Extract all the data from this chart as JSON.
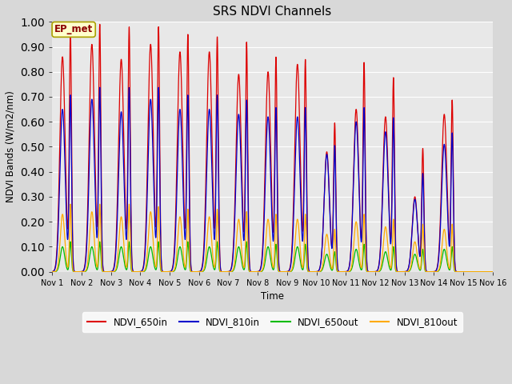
{
  "title": "SRS NDVI Channels",
  "ylabel": "NDVI Bands (W/m2/nm)",
  "xlabel": "Time",
  "annotation": "EP_met",
  "ylim": [
    0.0,
    1.0
  ],
  "xlim_days": [
    1,
    16
  ],
  "colors": {
    "NDVI_650in": "#dd0000",
    "NDVI_810in": "#0000cc",
    "NDVI_650out": "#00bb00",
    "NDVI_810out": "#ffaa00"
  },
  "peak_650in": [
    0.95,
    0.98,
    0.97,
    0.97,
    0.94,
    0.93,
    0.91,
    0.85,
    0.84,
    0.59,
    0.83,
    0.77,
    0.49,
    0.68
  ],
  "peak_810in": [
    0.7,
    0.73,
    0.73,
    0.73,
    0.7,
    0.7,
    0.68,
    0.65,
    0.65,
    0.5,
    0.65,
    0.61,
    0.39,
    0.55
  ],
  "peak_650out": [
    0.12,
    0.12,
    0.12,
    0.12,
    0.12,
    0.12,
    0.12,
    0.11,
    0.11,
    0.08,
    0.11,
    0.1,
    0.09,
    0.1
  ],
  "peak_810out": [
    0.27,
    0.27,
    0.27,
    0.26,
    0.25,
    0.25,
    0.24,
    0.23,
    0.23,
    0.17,
    0.23,
    0.21,
    0.19,
    0.19
  ],
  "shoulder_650in": [
    0.86,
    0.91,
    0.85,
    0.91,
    0.88,
    0.88,
    0.79,
    0.8,
    0.83,
    0.48,
    0.65,
    0.62,
    0.3,
    0.63
  ],
  "shoulder_810in": [
    0.65,
    0.69,
    0.64,
    0.69,
    0.65,
    0.65,
    0.63,
    0.62,
    0.62,
    0.47,
    0.6,
    0.56,
    0.29,
    0.51
  ],
  "shoulder_650out": [
    0.1,
    0.1,
    0.1,
    0.1,
    0.1,
    0.1,
    0.1,
    0.1,
    0.1,
    0.07,
    0.09,
    0.08,
    0.07,
    0.09
  ],
  "shoulder_810out": [
    0.23,
    0.24,
    0.22,
    0.24,
    0.22,
    0.22,
    0.21,
    0.21,
    0.21,
    0.15,
    0.2,
    0.18,
    0.12,
    0.17
  ],
  "bg_color": "#e8e8e8",
  "grid_color": "#ffffff",
  "tick_positions": [
    1,
    2,
    3,
    4,
    5,
    6,
    7,
    8,
    9,
    10,
    11,
    12,
    13,
    14,
    15,
    16
  ],
  "tick_labels": [
    "Nov 1",
    "Nov 2",
    "Nov 3",
    "Nov 4",
    "Nov 5",
    "Nov 6",
    "Nov 7",
    "Nov 8",
    "Nov 9",
    "Nov 10",
    "Nov 11",
    "Nov 12",
    "Nov 13",
    "Nov 14",
    "Nov 15",
    "Nov 16"
  ],
  "figsize": [
    6.4,
    4.8
  ],
  "dpi": 100
}
